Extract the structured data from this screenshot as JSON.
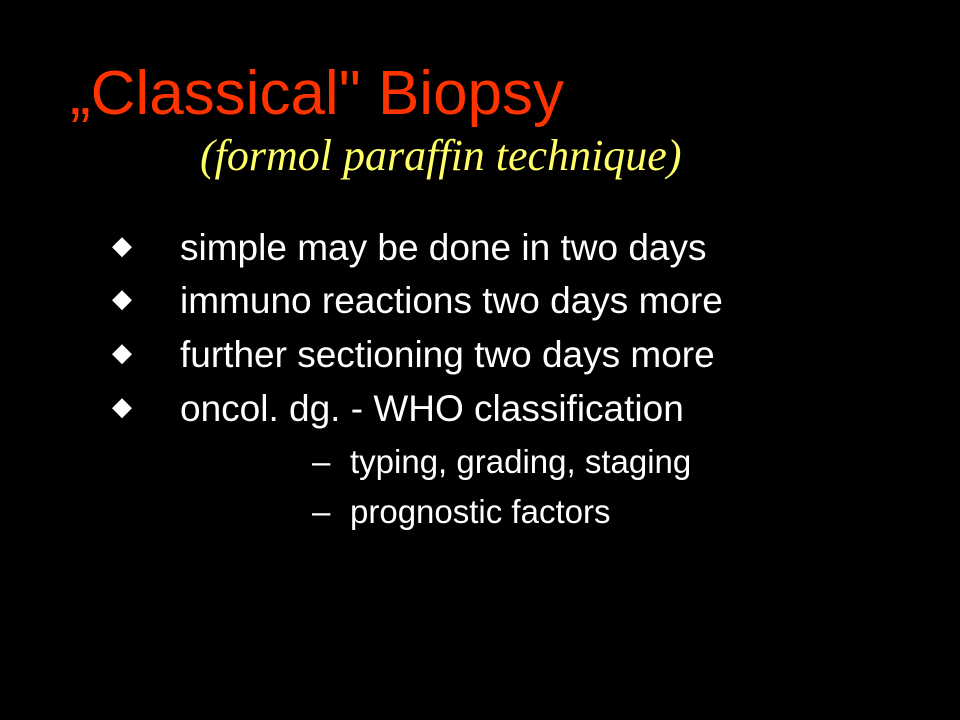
{
  "background_color": "#000000",
  "title": {
    "text": "„Classical\" Biopsy",
    "color": "#ff3300",
    "fontsize": 62
  },
  "subtitle": {
    "text": "(formol paraffin technique)",
    "color": "#ffff66",
    "fontsize": 44,
    "font_family": "cursive"
  },
  "bullets": [
    {
      "text": "simple may be done in two days"
    },
    {
      "text": "immuno reactions two days more"
    },
    {
      "text": "further sectioning two days more"
    },
    {
      "text": "oncol. dg. - WHO classification",
      "sub": [
        {
          "text": "typing, grading, staging"
        },
        {
          "text": "prognostic factors"
        }
      ]
    }
  ],
  "text_color": "#ffffff",
  "body_fontsize": 37,
  "sub_fontsize": 33
}
